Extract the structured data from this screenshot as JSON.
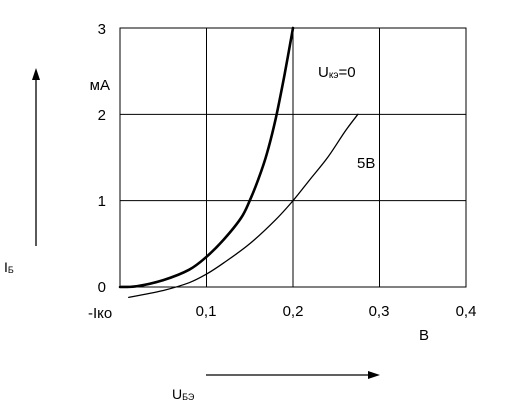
{
  "chart_data": {
    "type": "line",
    "title": "",
    "xlabel": "В",
    "ylabel": "мА",
    "xlim": [
      0,
      0.4
    ],
    "ylim": [
      0,
      3
    ],
    "grid": true,
    "x_ticks": [
      "0,1",
      "0,2",
      "0,3",
      "0,4"
    ],
    "y_ticks": [
      "0",
      "1",
      "2",
      "3"
    ],
    "neg_label": "-Iко",
    "series": [
      {
        "name": "Uкэ=0",
        "x": [
          0.0,
          0.02,
          0.05,
          0.08,
          0.1,
          0.12,
          0.14,
          0.15,
          0.16,
          0.17,
          0.18,
          0.19,
          0.2
        ],
        "y": [
          0.0,
          0.01,
          0.08,
          0.2,
          0.35,
          0.55,
          0.8,
          1.0,
          1.25,
          1.55,
          1.95,
          2.45,
          3.0
        ],
        "stroke_width": 2.6
      },
      {
        "name": "5В",
        "x": [
          0.01,
          0.05,
          0.08,
          0.1,
          0.12,
          0.15,
          0.18,
          0.2,
          0.22,
          0.24,
          0.26,
          0.275
        ],
        "y": [
          -0.12,
          -0.04,
          0.05,
          0.15,
          0.28,
          0.5,
          0.78,
          1.0,
          1.25,
          1.5,
          1.8,
          2.0
        ],
        "stroke_width": 1.3
      }
    ]
  },
  "axis_titles": {
    "y_symbol_main": "I",
    "y_symbol_sub": "Б",
    "x_symbol_main": "U",
    "x_symbol_sub": "БЭ"
  },
  "curve_labels": {
    "uke_main": "U",
    "uke_sub": "кэ",
    "uke_value": "=0",
    "v5": "5В"
  },
  "colors": {
    "line": "#000000",
    "grid": "#000000",
    "background": "#ffffff"
  }
}
